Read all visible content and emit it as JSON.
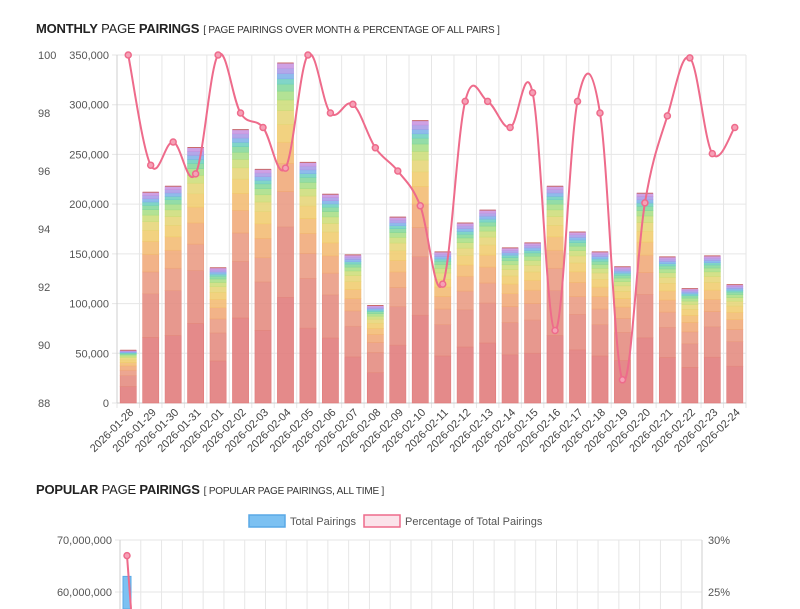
{
  "section1": {
    "title_bold1": "MONTHLY",
    "title_mid": "PAGE",
    "title_bold2": "PAIRINGS",
    "subtitle": "[ PAGE PAIRINGS OVER MONTH & PERCENTAGE OF ALL PAIRS ]"
  },
  "section2": {
    "title_bold1": "POPULAR",
    "title_mid": "PAGE",
    "title_bold2": "PAIRINGS",
    "subtitle": "[ POPULAR PAGE PAIRINGS, ALL TIME ]"
  },
  "chart_data": [
    {
      "type": "bar",
      "stacked": true,
      "title": "",
      "categories": [
        "2026-01-28",
        "2026-01-29",
        "2026-01-30",
        "2026-01-31",
        "2026-02-01",
        "2026-02-02",
        "2026-02-03",
        "2026-02-04",
        "2026-02-05",
        "2026-02-06",
        "2026-02-07",
        "2026-02-08",
        "2026-02-09",
        "2026-02-10",
        "2026-02-11",
        "2026-02-12",
        "2026-02-13",
        "2026-02-14",
        "2026-02-15",
        "2026-02-16",
        "2026-02-17",
        "2026-02-18",
        "2026-02-19",
        "2026-02-20",
        "2026-02-21",
        "2026-02-22",
        "2026-02-23",
        "2026-02-24"
      ],
      "totals": [
        53000,
        212000,
        218000,
        257000,
        136000,
        275000,
        235000,
        342000,
        242000,
        210000,
        149000,
        98000,
        187000,
        284000,
        152000,
        181000,
        194000,
        156000,
        161000,
        218000,
        172000,
        152000,
        137000,
        211000,
        147000,
        115000,
        148000,
        119000
      ],
      "stack_fractions": [
        0.3,
        0.2,
        0.1,
        0.08,
        0.06,
        0.05,
        0.04,
        0.03,
        0.025,
        0.02,
        0.015,
        0.015,
        0.015,
        0.015
      ],
      "stack_colors": [
        "#e07a7a",
        "#e48a7e",
        "#e99a82",
        "#f0a877",
        "#f3bb72",
        "#f0cc6e",
        "#e6d577",
        "#cddd7a",
        "#a8de86",
        "#84d79c",
        "#6fcfc0",
        "#7fb2e8",
        "#a99be6",
        "#c894e0"
      ],
      "line": {
        "name": "",
        "values": [
          100,
          96.2,
          97.0,
          95.9,
          100,
          98.0,
          97.5,
          96.1,
          100,
          98.0,
          98.3,
          96.8,
          96.0,
          94.8,
          92.1,
          98.4,
          98.4,
          97.5,
          98.7,
          90.5,
          98.4,
          98.0,
          88.8,
          94.9,
          97.9,
          99.9,
          96.6,
          97.5
        ],
        "color": "#ee6b8b"
      },
      "y_left": {
        "min": 0,
        "max": 350000,
        "ticks": [
          "0",
          "50,000",
          "100,000",
          "150,000",
          "200,000",
          "250,000",
          "300,000",
          "350,000"
        ]
      },
      "y_right": {
        "min": 88,
        "max": 100,
        "ticks": [
          "88",
          "90",
          "92",
          "94",
          "96",
          "98",
          "100"
        ]
      },
      "grid": true
    },
    {
      "type": "bar",
      "legend": [
        {
          "label": "Total Pairings",
          "color": "#7cc1f2"
        },
        {
          "label": "Percentage of Total Pairings",
          "color": "#ee6b8b"
        }
      ],
      "y_left": {
        "visible_ticks": [
          "60,000,000",
          "70,000,000"
        ],
        "tick_values": [
          60000000,
          70000000
        ],
        "max": 70000000
      },
      "y_right": {
        "visible_ticks": [
          "25%",
          "30%"
        ],
        "tick_values": [
          25,
          30
        ],
        "max": 30
      },
      "first_bar_value": 63000000,
      "first_point_value": 28.5,
      "grid": true,
      "gridline_count": 28
    }
  ]
}
